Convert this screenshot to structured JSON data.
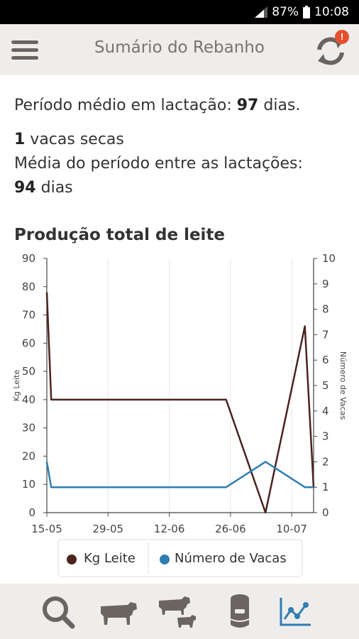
{
  "status_bar": {
    "battery": "87%",
    "time": "10:08"
  },
  "app_bar": {
    "title": "Sumário do Rebanho",
    "sync_badge": "!"
  },
  "summary": {
    "lactation_prefix": "Período médio em lactação: ",
    "lactation_days": "97",
    "lactation_suffix": " dias.",
    "dry_count": "1",
    "dry_suffix": " vacas secas",
    "interval_label": "Média do período entre as lactações:",
    "interval_days": "94",
    "interval_suffix": " dias"
  },
  "section_title": "Produção total de leite",
  "chart_data": {
    "type": "line",
    "title": "",
    "x": [
      "2016-05-15",
      "2016-05-16",
      "2016-06-25",
      "2016-07-04",
      "2016-07-13",
      "2016-07-15"
    ],
    "xticks": [
      "15-05",
      "29-05",
      "12-06",
      "26-06",
      "10-07"
    ],
    "xtick_dates": [
      "2016-05-15",
      "2016-05-29",
      "2016-06-12",
      "2016-06-26",
      "2016-07-10"
    ],
    "xlim": [
      "2016-05-15",
      "2016-07-15"
    ],
    "y_left": {
      "label": "Kg Leite",
      "lim": [
        0,
        90
      ],
      "ticks": [
        0,
        10,
        20,
        30,
        40,
        50,
        60,
        70,
        80,
        90
      ]
    },
    "y_right": {
      "label": "Número de Vacas",
      "lim": [
        0,
        10
      ],
      "ticks": [
        0,
        1,
        2,
        3,
        4,
        5,
        6,
        7,
        8,
        9,
        10
      ]
    },
    "grid": "x",
    "legend": "bottom",
    "series": [
      {
        "name": "Kg Leite",
        "axis": "left",
        "color": "#4a241d",
        "values": [
          78,
          40,
          40,
          0,
          66,
          9
        ]
      },
      {
        "name": "Número de Vacas",
        "axis": "right",
        "color": "#2f7db4",
        "values": [
          2,
          1,
          1,
          2,
          1,
          1
        ]
      }
    ]
  },
  "colors": {
    "app_bar_bg": "#efedeb",
    "icon_gray": "#6b6561",
    "accent_blue": "#2f7db4",
    "badge_red": "#e4502e"
  },
  "bottom_nav": {
    "items": [
      {
        "icon": "search-icon"
      },
      {
        "icon": "cow-icon"
      },
      {
        "icon": "cow-calf-icon"
      },
      {
        "icon": "milk-tank-icon"
      },
      {
        "icon": "chart-icon",
        "active": true
      }
    ]
  }
}
